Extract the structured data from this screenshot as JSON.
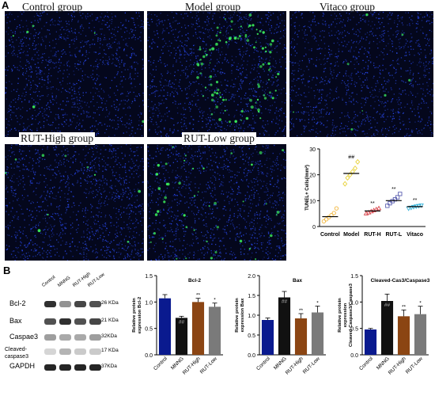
{
  "panel_labels": {
    "a": "A",
    "b": "B"
  },
  "micrographs": [
    {
      "id": "control",
      "title": "Control group",
      "green": 6
    },
    {
      "id": "model",
      "title": "Model group",
      "green": 95
    },
    {
      "id": "vitaco",
      "title": "Vitaco   group",
      "green": 8
    },
    {
      "id": "rut-high",
      "title": "RUT-High group",
      "green": 10
    },
    {
      "id": "rut-low",
      "title": "RUT-Low group",
      "green": 45
    }
  ],
  "western_blot": {
    "lanes": [
      "Control",
      "MNNG",
      "RUT-High",
      "RUT-Low"
    ],
    "rows": [
      {
        "label": "Bcl-2",
        "kda": "26 KDa",
        "intensity": [
          0.85,
          0.4,
          0.75,
          0.7
        ]
      },
      {
        "label": "Bax",
        "kda": "21 KDa",
        "intensity": [
          0.7,
          0.85,
          0.7,
          0.75
        ]
      },
      {
        "label": "Caspae3",
        "kda": "32KDa",
        "intensity": [
          0.35,
          0.3,
          0.3,
          0.35
        ]
      },
      {
        "label": "Cleaved-caspase3",
        "kda": "17 KDa",
        "intensity": [
          0.1,
          0.25,
          0.15,
          0.15
        ]
      },
      {
        "label": "GAPDH",
        "kda": "37KDa",
        "intensity": [
          0.9,
          0.9,
          0.9,
          0.9
        ]
      }
    ]
  },
  "chart_data": [
    {
      "id": "tunel",
      "type": "scatter",
      "title": "",
      "ylabel": "TUNEL+ Cells(/mm²)",
      "categories": [
        "Control",
        "Model",
        "RUT-H",
        "RUT-L",
        "Vitaco"
      ],
      "ylim": [
        0,
        30
      ],
      "yticks": [
        0,
        10,
        20,
        30
      ],
      "colors": [
        "#f2b53a",
        "#e8d23a",
        "#d8454c",
        "#5a5fb0",
        "#3ab6dc"
      ],
      "markers": [
        "circle",
        "diamond",
        "triangle",
        "square",
        "triangle-down"
      ],
      "means": [
        3.8,
        20.5,
        6.0,
        10.0,
        7.7
      ],
      "points": [
        [
          2.0,
          2.8,
          3.6,
          4.4,
          5.2,
          7.0
        ],
        [
          16.5,
          18.8,
          20.0,
          21.2,
          22.5,
          25.0
        ],
        [
          5.0,
          5.4,
          5.8,
          6.2,
          6.6,
          7.0
        ],
        [
          8.0,
          9.0,
          9.8,
          10.5,
          11.3,
          12.6
        ],
        [
          7.0,
          7.3,
          7.6,
          7.8,
          8.0,
          8.2
        ]
      ],
      "annotations": [
        "",
        "##",
        "**",
        "**",
        "**"
      ]
    },
    {
      "id": "bcl2",
      "type": "bar",
      "title": "Bcl-2",
      "ylabel": "Relative protein expression Bcl-2",
      "categories": [
        "Control",
        "MNNG",
        "RUT-High",
        "RUT-Low"
      ],
      "values": [
        1.07,
        0.7,
        1.0,
        0.91
      ],
      "errors": [
        0.07,
        0.03,
        0.07,
        0.07
      ],
      "ylim": [
        0,
        1.5
      ],
      "yticks": [
        "0.0",
        "0.5",
        "1.0",
        "1.5"
      ],
      "colors": [
        "#0a1a8f",
        "#111111",
        "#8b4513",
        "#7a7a7a"
      ],
      "annotations": [
        "",
        "##",
        "**",
        "*"
      ]
    },
    {
      "id": "bax",
      "type": "bar",
      "title": "Bax",
      "ylabel": "Relative protein expression Bax",
      "categories": [
        "Control",
        "MNNG",
        "RUT-High",
        "RUT-Low"
      ],
      "values": [
        0.88,
        1.45,
        0.92,
        1.07
      ],
      "errors": [
        0.05,
        0.15,
        0.12,
        0.16
      ],
      "ylim": [
        0,
        2.0
      ],
      "yticks": [
        "0.0",
        "0.5",
        "1.0",
        "1.5",
        "2.0"
      ],
      "colors": [
        "#0a1a8f",
        "#111111",
        "#8b4513",
        "#7a7a7a"
      ],
      "annotations": [
        "",
        "##",
        "**",
        "*"
      ]
    },
    {
      "id": "cas3",
      "type": "bar",
      "title": "Cleaved-Cas3/Caspase3",
      "ylabel": "Relative protein expression Cleaved-Caspase3/Caspase3",
      "categories": [
        "Control",
        "MNNG",
        "RUT-High",
        "RUT-Low"
      ],
      "values": [
        0.48,
        1.02,
        0.73,
        0.77
      ],
      "errors": [
        0.02,
        0.13,
        0.12,
        0.15
      ],
      "ylim": [
        0,
        1.5
      ],
      "yticks": [
        "0.0",
        "0.5",
        "1.0",
        "1.5"
      ],
      "colors": [
        "#0a1a8f",
        "#111111",
        "#8b4513",
        "#7a7a7a"
      ],
      "annotations": [
        "",
        "##",
        "**",
        "*"
      ]
    }
  ]
}
